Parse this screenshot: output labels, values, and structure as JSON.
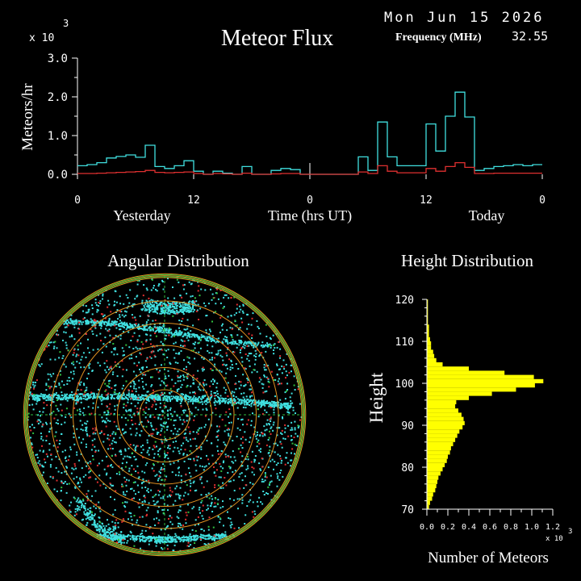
{
  "header": {
    "date": "Mon Jun 15 2026",
    "title": "Meteor Flux",
    "frequency_label": "Frequency (MHz)",
    "frequency_value": "32.55",
    "multiplier_base": "x 10",
    "multiplier_exp": "3"
  },
  "chart_data": [
    {
      "type": "line",
      "title": "Meteor Flux",
      "ylabel": "Meteors/hr",
      "xlabel": "Time (hrs UT)",
      "x_ticks": [
        "0",
        "12",
        "0",
        "12",
        "0"
      ],
      "y_ticks": [
        "0.0",
        "1.0",
        "2.0",
        "3.0"
      ],
      "ylim": [
        0,
        3.0
      ],
      "xlim": [
        0,
        48
      ],
      "day_labels": [
        "Yesterday",
        "Today"
      ],
      "series": [
        {
          "color": "#40e0e0",
          "values": [
            0.22,
            0.25,
            0.3,
            0.42,
            0.46,
            0.5,
            0.44,
            0.75,
            0.2,
            0.15,
            0.22,
            0.35,
            0.08,
            0.0,
            0.08,
            0.03,
            0.0,
            0.2,
            0.0,
            0.0,
            0.1,
            0.15,
            0.12,
            0.0,
            0.0,
            0.0,
            0.0,
            0.0,
            0.0,
            0.45,
            0.1,
            1.35,
            0.45,
            0.22,
            0.22,
            0.22,
            1.3,
            0.6,
            1.5,
            2.12,
            1.48,
            0.1,
            0.15,
            0.2,
            0.22,
            0.25,
            0.22,
            0.25
          ]
        },
        {
          "color": "#e03030",
          "values": [
            0.02,
            0.02,
            0.03,
            0.04,
            0.05,
            0.06,
            0.07,
            0.1,
            0.05,
            0.04,
            0.05,
            0.06,
            0.02,
            0.0,
            0.02,
            0.01,
            0.0,
            0.03,
            0.0,
            0.0,
            0.01,
            0.02,
            0.02,
            0.0,
            0.0,
            0.0,
            0.0,
            0.0,
            0.0,
            0.06,
            0.02,
            0.22,
            0.08,
            0.04,
            0.04,
            0.04,
            0.15,
            0.08,
            0.2,
            0.3,
            0.18,
            0.02,
            0.02,
            0.03,
            0.03,
            0.03,
            0.03,
            0.03
          ]
        }
      ]
    },
    {
      "type": "scatter",
      "title": "Angular Distribution"
    },
    {
      "type": "bar",
      "title": "Height Distribution",
      "ylabel": "Height",
      "xlabel": "Number of Meteors",
      "y_ticks": [
        "70",
        "80",
        "90",
        "100",
        "110",
        "120"
      ],
      "x_ticks": [
        "0.0",
        "0.2",
        "0.4",
        "0.6",
        "0.8",
        "1.0",
        "1.2"
      ],
      "multiplier_base": "x 10",
      "multiplier_exp": "3",
      "ylim": [
        70,
        120
      ],
      "xlim": [
        0,
        1.2
      ],
      "heights": [
        70,
        71,
        72,
        73,
        74,
        75,
        76,
        77,
        78,
        79,
        80,
        81,
        82,
        83,
        84,
        85,
        86,
        87,
        88,
        89,
        90,
        91,
        92,
        93,
        94,
        95,
        96,
        97,
        98,
        99,
        100,
        101,
        102,
        103,
        104,
        105,
        106,
        107,
        108,
        109,
        110,
        111,
        112,
        113,
        114,
        115,
        116,
        117,
        118,
        119
      ],
      "values": [
        0.02,
        0.03,
        0.05,
        0.06,
        0.08,
        0.09,
        0.1,
        0.11,
        0.13,
        0.15,
        0.17,
        0.19,
        0.2,
        0.22,
        0.23,
        0.25,
        0.27,
        0.29,
        0.31,
        0.34,
        0.36,
        0.35,
        0.33,
        0.3,
        0.27,
        0.28,
        0.4,
        0.62,
        0.85,
        1.03,
        1.11,
        1.02,
        0.74,
        0.4,
        0.15,
        0.09,
        0.07,
        0.06,
        0.04,
        0.04,
        0.03,
        0.02,
        0.02,
        0.02,
        0.01,
        0.01,
        0.01,
        0.01,
        0.01,
        0.01
      ]
    }
  ]
}
